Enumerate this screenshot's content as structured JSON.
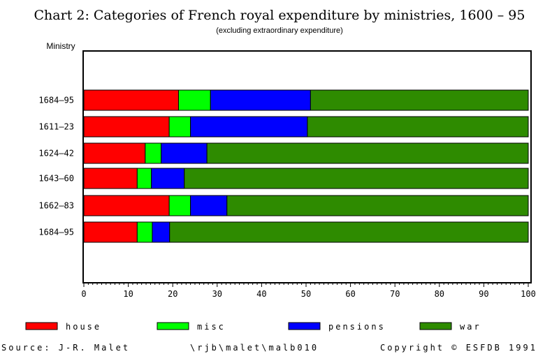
{
  "chart_data": {
    "type": "bar",
    "orientation": "horizontal",
    "stacked": true,
    "title": "Chart 2: Categories of French royal expenditure by ministries, 1600 – 95",
    "subtitle": "(excluding extraordinary expenditure)",
    "ylabel": "Ministry",
    "xlabel": "",
    "categories": [
      "1684–95",
      "1611–23",
      "1624–42",
      "1643–60",
      "1662–83",
      "1684–95"
    ],
    "xlim": [
      0,
      100
    ],
    "xticks": [
      0,
      10,
      20,
      30,
      40,
      50,
      60,
      70,
      80,
      90,
      100
    ],
    "grid": false,
    "legend_position": "bottom",
    "series": [
      {
        "name": "house",
        "color": "#ff0000",
        "values": [
          21.3,
          19.2,
          13.8,
          12.0,
          19.2,
          12.0
        ]
      },
      {
        "name": "misc",
        "color": "#00ff00",
        "values": [
          7.2,
          4.8,
          3.6,
          3.2,
          4.8,
          3.4
        ]
      },
      {
        "name": "pensions",
        "color": "#0000ff",
        "values": [
          22.5,
          26.3,
          10.3,
          7.4,
          8.2,
          3.9
        ]
      },
      {
        "name": "war",
        "color": "#2e8b00",
        "values": [
          49.0,
          49.7,
          72.3,
          77.4,
          67.8,
          80.7
        ]
      }
    ]
  },
  "footer": {
    "source": "Source: J-R. Malet",
    "path": "\\rjb\\malet\\malb010",
    "copyright": "Copyright © ESFDB 1991"
  }
}
